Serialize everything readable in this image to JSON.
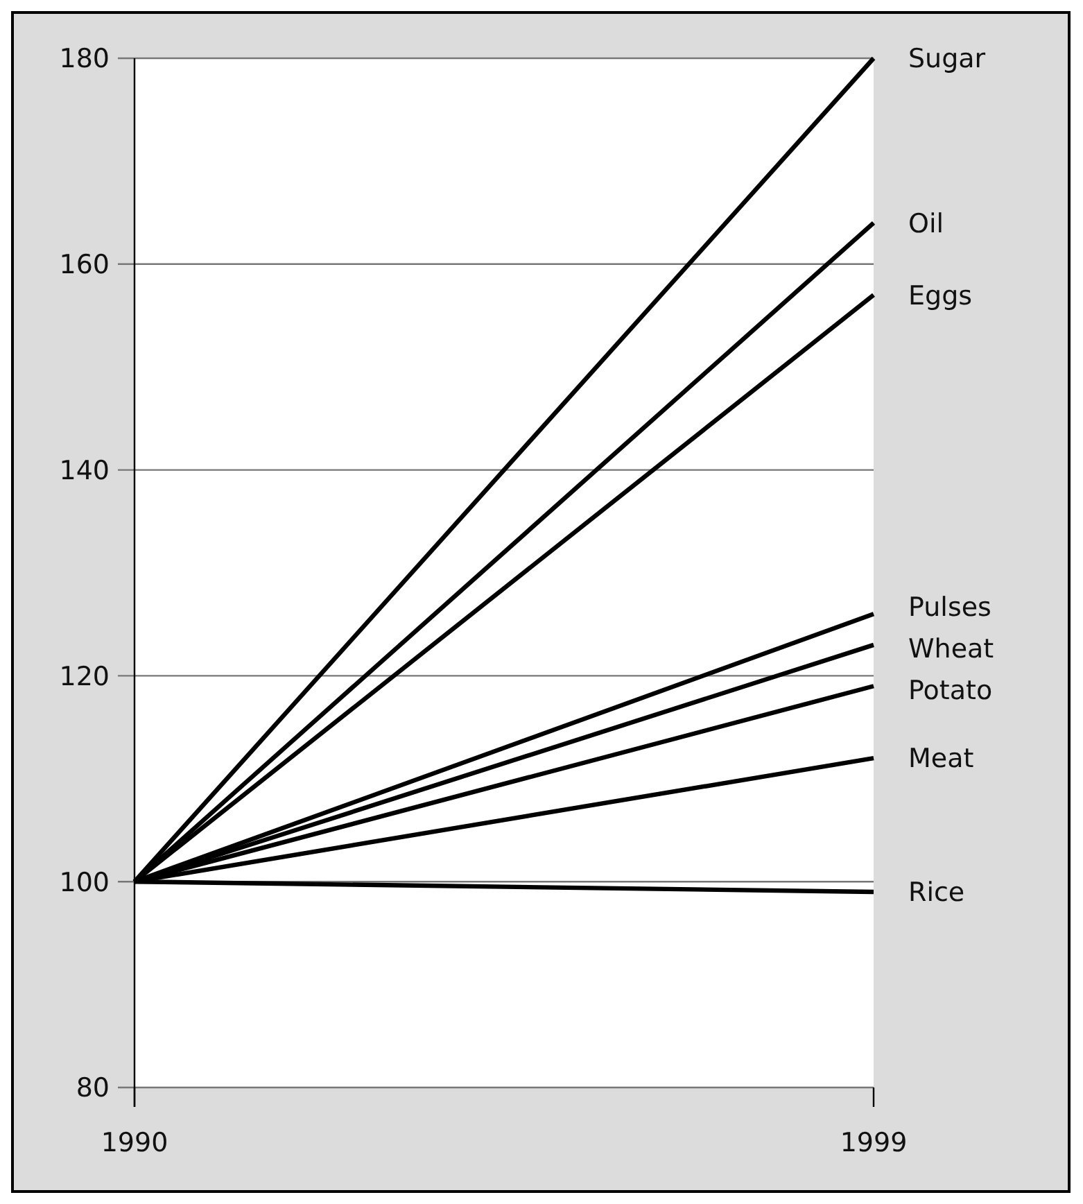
{
  "chart_data": {
    "type": "line",
    "x": [
      1990,
      1999
    ],
    "xlim": [
      1990,
      1999
    ],
    "xticks": [
      1990,
      1999
    ],
    "ylim": [
      80,
      180
    ],
    "yticks": [
      80,
      100,
      120,
      140,
      160,
      180
    ],
    "grid": "y",
    "series": [
      {
        "name": "Sugar",
        "color": "#000000",
        "values": [
          100,
          180
        ]
      },
      {
        "name": "Oil",
        "color": "#000000",
        "values": [
          100,
          164
        ]
      },
      {
        "name": "Eggs",
        "color": "#000000",
        "values": [
          100,
          157
        ]
      },
      {
        "name": "Pulses",
        "color": "#000000",
        "values": [
          100,
          126
        ]
      },
      {
        "name": "Wheat",
        "color": "#000000",
        "values": [
          100,
          123
        ]
      },
      {
        "name": "Potato",
        "color": "#000000",
        "values": [
          100,
          119
        ]
      },
      {
        "name": "Meat",
        "color": "#000000",
        "values": [
          100,
          112
        ]
      },
      {
        "name": "Rice",
        "color": "#000000",
        "values": [
          100,
          99
        ]
      }
    ]
  }
}
